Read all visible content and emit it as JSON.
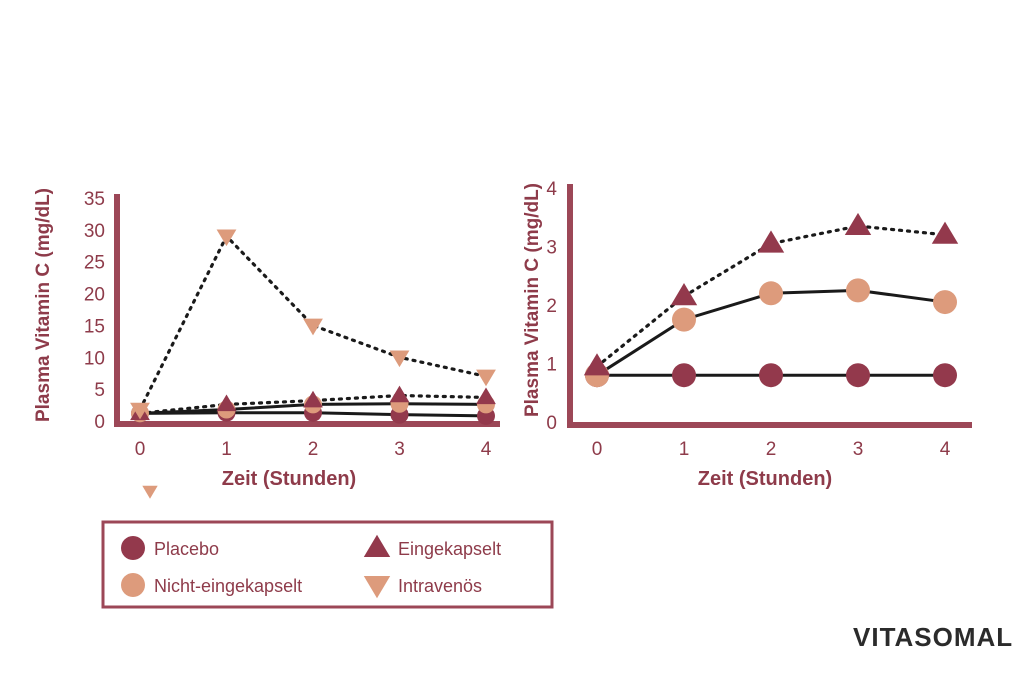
{
  "colors": {
    "axis": "#9c4757",
    "text": "#8e3b4a",
    "placebo": "#93394c",
    "nicht_eingekapselt": "#dd9b7c",
    "eingekapselt": "#93394c",
    "intravenoes": "#dd9b7c",
    "line": "#1a1a1a"
  },
  "brand": {
    "text": "VITASOMAL"
  },
  "legend": {
    "items": [
      {
        "label": "Placebo",
        "marker": "circle",
        "colorKey": "placebo"
      },
      {
        "label": "Eingekapselt",
        "marker": "triangle-up",
        "colorKey": "eingekapselt"
      },
      {
        "label": "Nicht-eingekapselt",
        "marker": "circle",
        "colorKey": "nicht_eingekapselt"
      },
      {
        "label": "Intravenös",
        "marker": "triangle-down",
        "colorKey": "intravenoes"
      }
    ]
  },
  "chart_data": [
    {
      "type": "line",
      "xlabel": "Zeit (Stunden)",
      "ylabel": "Plasma Vitamin C (mg/dL)",
      "x": [
        0,
        1,
        2,
        3,
        4
      ],
      "xticklabels": [
        "0",
        "1",
        "2",
        "3",
        "4"
      ],
      "ylim": [
        0,
        35
      ],
      "yticks": [
        0,
        5,
        10,
        15,
        20,
        25,
        30,
        35
      ],
      "series": [
        {
          "name": "Placebo",
          "marker": "circle",
          "line": "solid",
          "values": [
            1.2,
            1.3,
            1.3,
            1.0,
            0.8
          ]
        },
        {
          "name": "Nicht-eingekapselt",
          "marker": "circle",
          "line": "solid",
          "values": [
            1.2,
            1.8,
            2.6,
            2.7,
            2.6
          ]
        },
        {
          "name": "Eingekapselt",
          "marker": "triangle-up",
          "line": "dotted",
          "values": [
            1.2,
            2.6,
            3.2,
            4.0,
            3.7
          ]
        },
        {
          "name": "Intravenös",
          "marker": "triangle-down",
          "line": "dotted",
          "values": [
            1.8,
            29.0,
            15.0,
            10.0,
            7.0
          ]
        }
      ]
    },
    {
      "type": "line",
      "xlabel": "Zeit (Stunden)",
      "ylabel": "Plasma Vitamin C (mg/dL)",
      "x": [
        0,
        1,
        2,
        3,
        4
      ],
      "xticklabels": [
        "0",
        "1",
        "2",
        "3",
        "4"
      ],
      "ylim": [
        0,
        4
      ],
      "yticks": [
        0,
        1,
        2,
        3,
        4
      ],
      "series": [
        {
          "name": "Placebo",
          "marker": "circle",
          "line": "solid",
          "values": [
            0.8,
            0.8,
            0.8,
            0.8,
            0.8
          ]
        },
        {
          "name": "Nicht-eingekapselt",
          "marker": "circle",
          "line": "solid",
          "values": [
            0.8,
            1.75,
            2.2,
            2.25,
            2.05
          ]
        },
        {
          "name": "Eingekapselt",
          "marker": "triangle-up",
          "line": "dotted",
          "values": [
            0.95,
            2.15,
            3.05,
            3.35,
            3.2
          ]
        }
      ]
    }
  ]
}
